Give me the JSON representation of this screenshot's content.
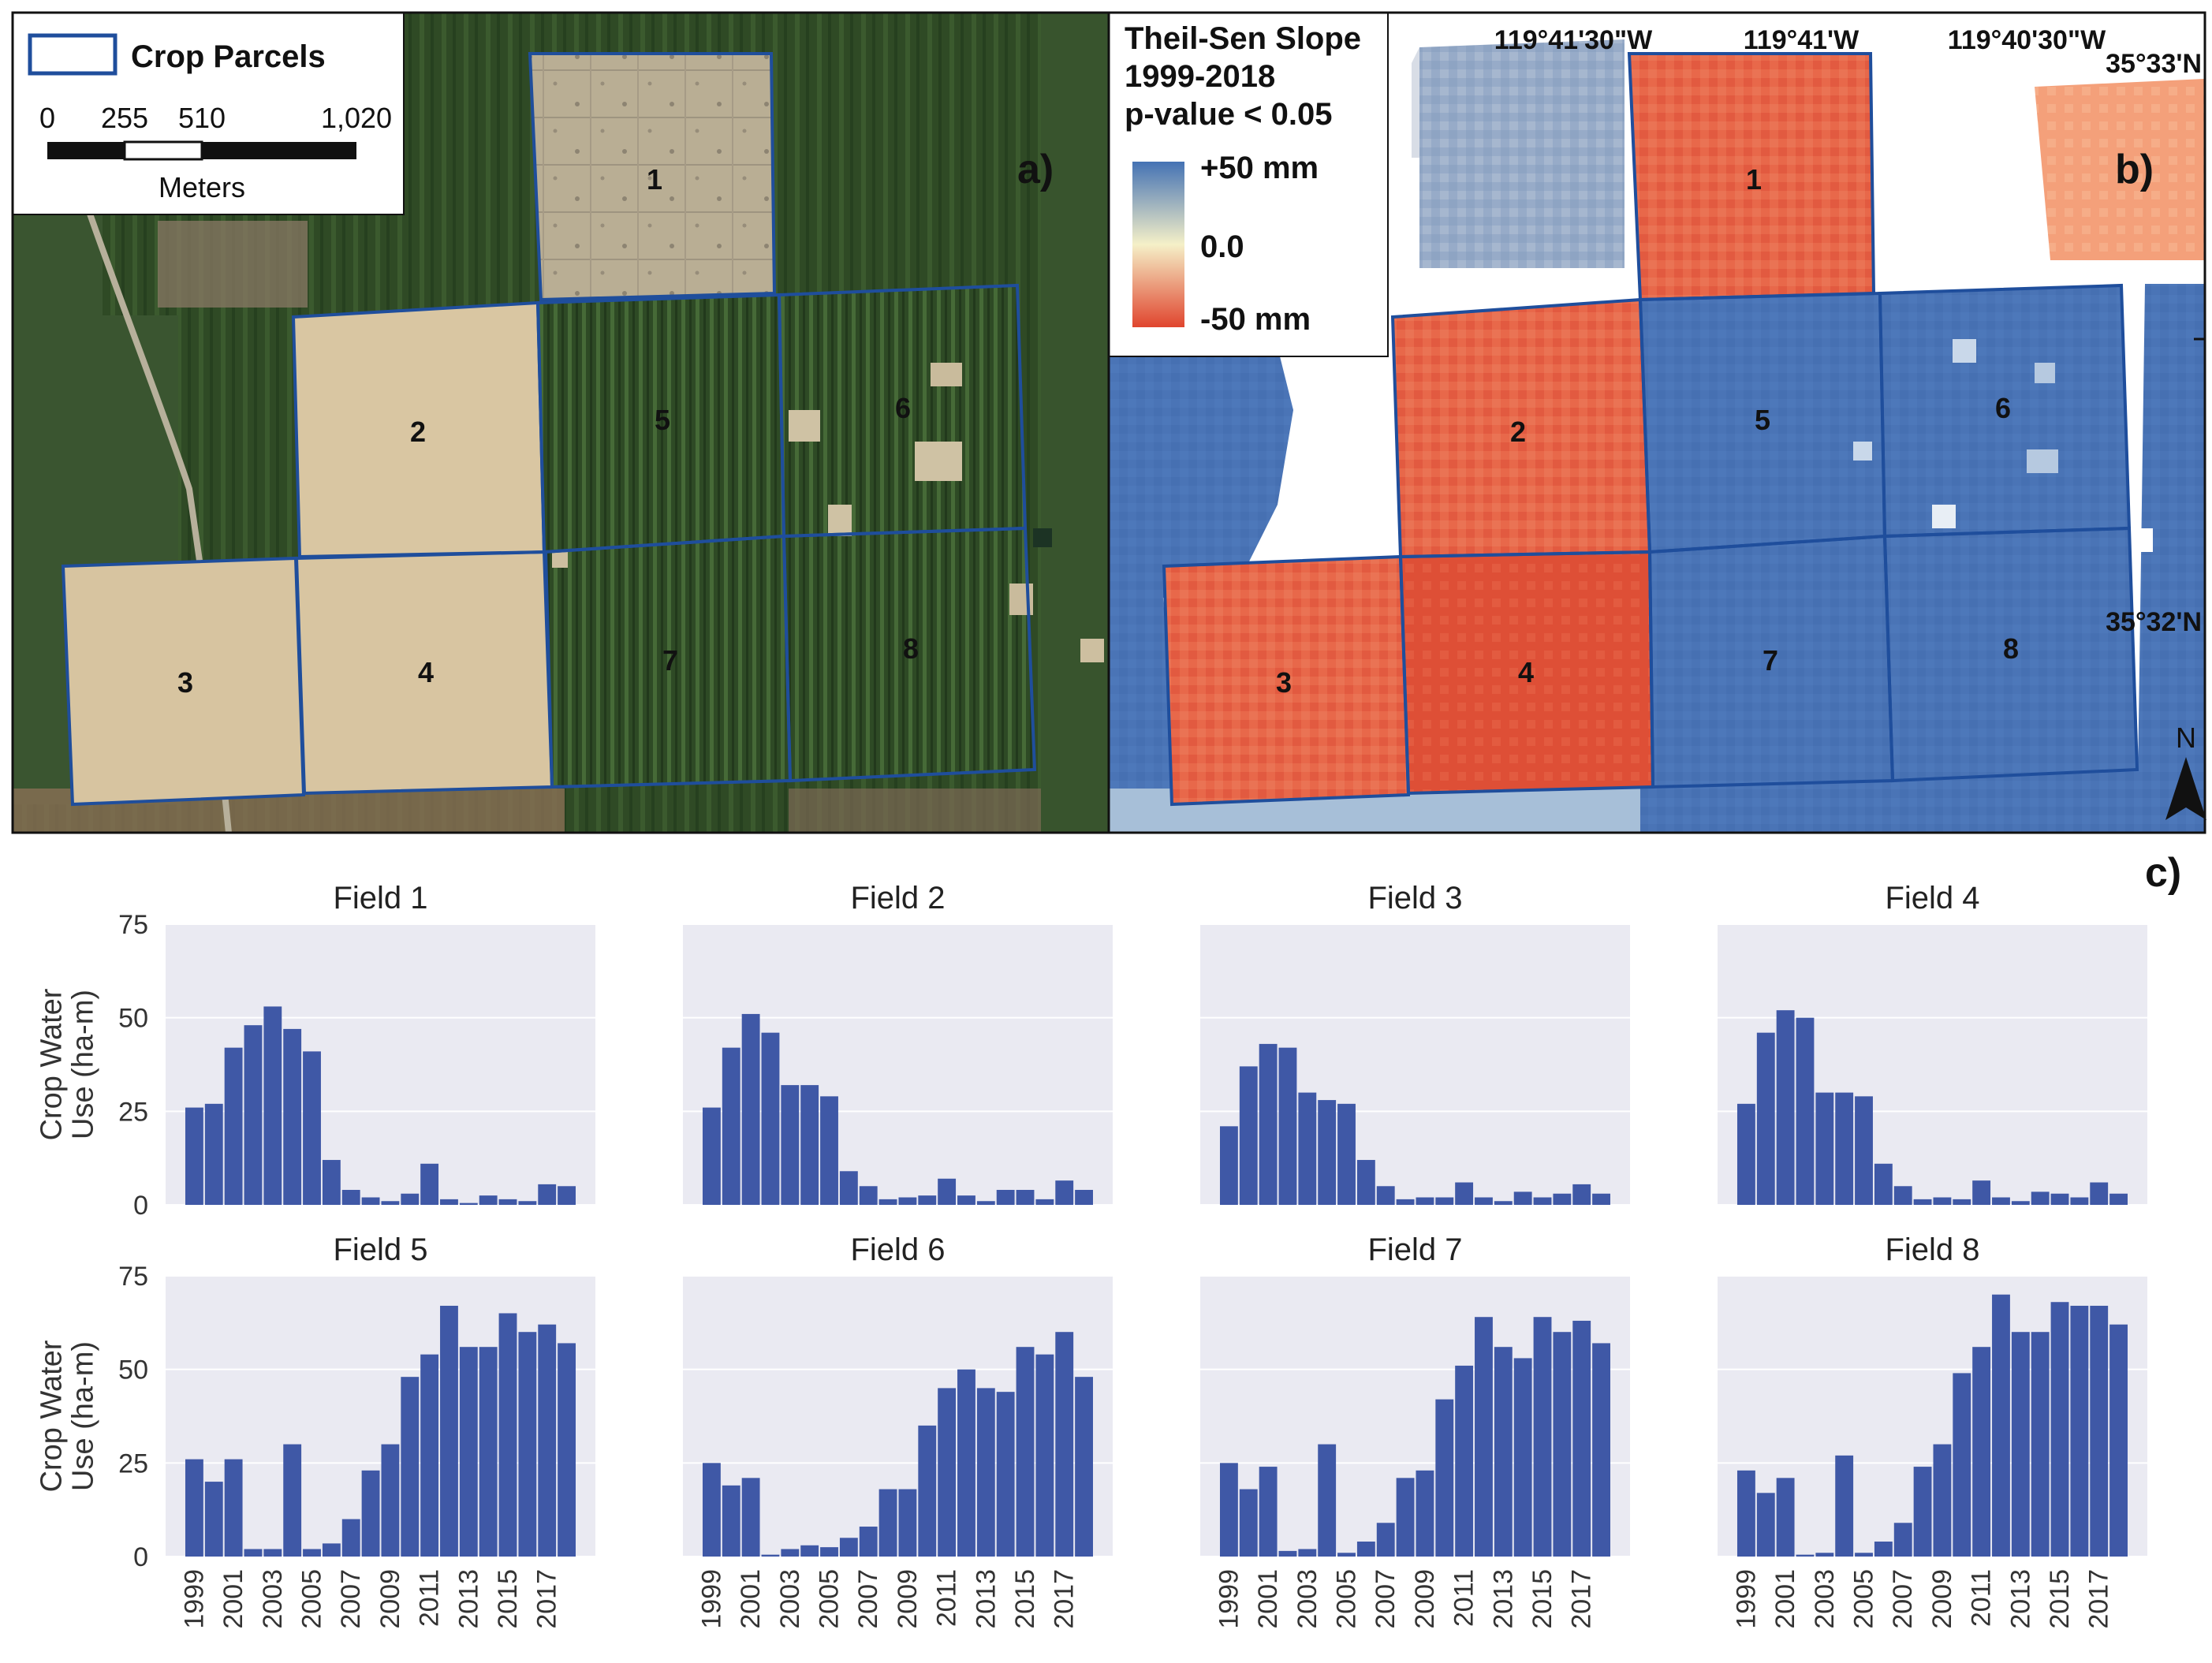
{
  "panel_a": {
    "label": "a)",
    "legend_title": "Crop Parcels",
    "scale_ticks": [
      "0",
      "255",
      "510",
      "1,020"
    ],
    "scale_unit": "Meters",
    "field_labels": [
      "1",
      "2",
      "3",
      "4",
      "5",
      "6",
      "7",
      "8"
    ]
  },
  "panel_b": {
    "label": "b)",
    "legend_title_lines": [
      "Theil-Sen Slope",
      "1999-2018",
      "p-value < 0.05"
    ],
    "legend_high": "+50 mm",
    "legend_mid": "0.0",
    "legend_low": "-50 mm",
    "lon_labels": [
      "119°41'30\"W",
      "119°41'W",
      "119°40'30\"W"
    ],
    "lat_labels": [
      "35°33'N",
      "35°32'N"
    ],
    "north_label": "N",
    "field_labels": [
      "1",
      "2",
      "3",
      "4",
      "5",
      "6",
      "7",
      "8"
    ],
    "colors": {
      "high": "#4472b4",
      "mid": "#f5f0c8",
      "low": "#e0452e",
      "parcel": "#1f4e9c"
    }
  },
  "panel_c": {
    "label": "c)"
  },
  "chart_data": {
    "type": "bar",
    "ylabel": "Crop Water Use (ha-m)",
    "ylim": [
      0,
      75
    ],
    "yticks": [
      0,
      25,
      50,
      75
    ],
    "xtick_labels": [
      "1999",
      "2001",
      "2003",
      "2005",
      "2007",
      "2009",
      "2011",
      "2013",
      "2015",
      "2017"
    ],
    "years": [
      1999,
      2000,
      2001,
      2002,
      2003,
      2004,
      2005,
      2006,
      2007,
      2008,
      2009,
      2010,
      2011,
      2012,
      2013,
      2014,
      2015,
      2016,
      2017,
      2018
    ],
    "bar_color": "#3f58a6",
    "fields": [
      {
        "title": "Field 1",
        "values": [
          26,
          27,
          42,
          48,
          53,
          47,
          41,
          12,
          4,
          2,
          1,
          3,
          11,
          1.5,
          0.5,
          2.5,
          1.5,
          1,
          5.5,
          5
        ]
      },
      {
        "title": "Field 2",
        "values": [
          26,
          42,
          51,
          46,
          32,
          32,
          29,
          9,
          5,
          1.5,
          2,
          2.5,
          7,
          2.5,
          1,
          4,
          4,
          1.5,
          6.5,
          4
        ]
      },
      {
        "title": "Field 3",
        "values": [
          21,
          37,
          43,
          42,
          30,
          28,
          27,
          12,
          5,
          1.5,
          2,
          2,
          6,
          2,
          1,
          3.5,
          2,
          3,
          5.5,
          3
        ]
      },
      {
        "title": "Field 4",
        "values": [
          27,
          46,
          52,
          50,
          30,
          30,
          29,
          11,
          5,
          1.5,
          2,
          1.5,
          6.5,
          2,
          1,
          3.5,
          3,
          2,
          6,
          3
        ]
      },
      {
        "title": "Field 5",
        "values": [
          26,
          20,
          26,
          2,
          2,
          30,
          2,
          3.5,
          10,
          23,
          30,
          48,
          54,
          67,
          56,
          56,
          65,
          60,
          62,
          57
        ]
      },
      {
        "title": "Field 6",
        "values": [
          25,
          19,
          21,
          0.5,
          2,
          3,
          2.5,
          5,
          8,
          18,
          18,
          35,
          45,
          50,
          45,
          44,
          56,
          54,
          60,
          48
        ]
      },
      {
        "title": "Field 7",
        "values": [
          25,
          18,
          24,
          1.5,
          2,
          30,
          1,
          4,
          9,
          21,
          23,
          42,
          51,
          64,
          56,
          53,
          64,
          60,
          63,
          57
        ]
      },
      {
        "title": "Field 8",
        "values": [
          23,
          17,
          21,
          0.5,
          1,
          27,
          1,
          4,
          9,
          24,
          30,
          49,
          56,
          70,
          60,
          60,
          68,
          67,
          67,
          62
        ]
      }
    ]
  }
}
